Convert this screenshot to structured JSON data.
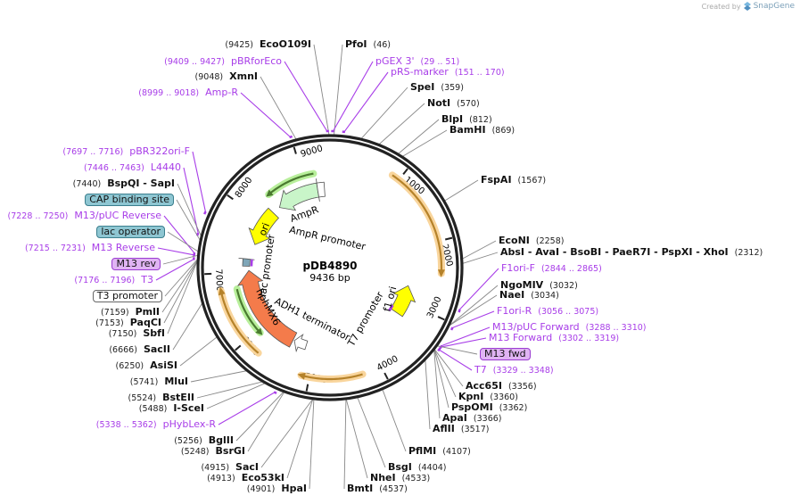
{
  "watermark": {
    "prefix": "Created by",
    "brand": "SnapGene"
  },
  "plasmid": {
    "name": "pDB4890",
    "length": "9436 bp",
    "length_bp": 9436
  },
  "ticks": [
    "1000",
    "2000",
    "3000",
    "4000",
    "5000",
    "6000",
    "7000",
    "8000",
    "9000"
  ],
  "features": {
    "ampr": "AmpR",
    "ampr_promoter": "AmpR promoter",
    "ori": "ori",
    "lac_promoter": "lac promoter",
    "hphmx6": "hphMX6",
    "adh1_terminator": "ADH1 terminator",
    "t7_promoter": "T7 promoter",
    "f1_ori": "f1 ori"
  },
  "colors": {
    "primer": "#a83de8",
    "enzyme_line": "#888888",
    "ampr": "#c9f5c9",
    "ori": "#ffff00",
    "hphmx6": "#f47b4b",
    "orf": "#f9d59c",
    "orf_line": "#b5822a",
    "green_orf": "#b8ef9b"
  },
  "labels": [
    {
      "type": "enzyme",
      "name": "EcoO109I",
      "pos": "(9425)"
    },
    {
      "type": "primer",
      "name": "pBRforEco",
      "pos": "(9409 .. 9427)"
    },
    {
      "type": "enzyme",
      "name": "XmnI",
      "pos": "(9048)"
    },
    {
      "type": "primer",
      "name": "Amp-R",
      "pos": "(8999 .. 9018)"
    },
    {
      "type": "primer",
      "name": "pBR322ori-F",
      "pos": "(7697 .. 7716)"
    },
    {
      "type": "primer",
      "name": "L4440",
      "pos": "(7446 .. 7463)"
    },
    {
      "type": "enzyme",
      "name": "BspQI   - SapI",
      "pos": "(7440)"
    },
    {
      "type": "box",
      "style": "cap",
      "name": "CAP binding site"
    },
    {
      "type": "primer",
      "name": "M13/pUC Reverse",
      "pos": "(7228 .. 7250)"
    },
    {
      "type": "box",
      "style": "cap",
      "name": "lac operator"
    },
    {
      "type": "primer",
      "name": "M13 Reverse",
      "pos": "(7215 .. 7231)"
    },
    {
      "type": "box",
      "style": "m13",
      "name": "M13 rev"
    },
    {
      "type": "primer",
      "name": "T3",
      "pos": "(7176 .. 7196)"
    },
    {
      "type": "box",
      "style": "plain",
      "name": "T3 promoter"
    },
    {
      "type": "enzyme",
      "name": "PmlI",
      "pos": "(7159)"
    },
    {
      "type": "enzyme",
      "name": "PaqCI",
      "pos": "(7153)"
    },
    {
      "type": "enzyme",
      "name": "SbfI",
      "pos": "(7150)"
    },
    {
      "type": "enzyme",
      "name": "SacII",
      "pos": "(6666)"
    },
    {
      "type": "enzyme",
      "name": "AsiSI",
      "pos": "(6250)"
    },
    {
      "type": "enzyme",
      "name": "MluI",
      "pos": "(5741)"
    },
    {
      "type": "enzyme",
      "name": "BstEII",
      "pos": "(5524)"
    },
    {
      "type": "enzyme",
      "name": "I-SceI",
      "pos": "(5488)"
    },
    {
      "type": "primer",
      "name": "pHybLex-R",
      "pos": "(5338 .. 5362)"
    },
    {
      "type": "enzyme",
      "name": "BglII",
      "pos": "(5256)"
    },
    {
      "type": "enzyme",
      "name": "BsrGI",
      "pos": "(5248)"
    },
    {
      "type": "enzyme",
      "name": "SacI",
      "pos": "(4915)"
    },
    {
      "type": "enzyme",
      "name": "Eco53kI",
      "pos": "(4913)"
    },
    {
      "type": "enzyme",
      "name": "HpaI",
      "pos": "(4901)"
    },
    {
      "type": "enzyme",
      "name": "PfoI",
      "pos": "(46)"
    },
    {
      "type": "primer",
      "name": "pGEX 3'",
      "pos": "(29 .. 51)"
    },
    {
      "type": "primer",
      "name": "pRS-marker",
      "pos": "(151 .. 170)"
    },
    {
      "type": "enzyme",
      "name": "SpeI",
      "pos": "(359)"
    },
    {
      "type": "enzyme",
      "name": "NotI",
      "pos": "(570)"
    },
    {
      "type": "enzyme",
      "name": "BlpI",
      "pos": "(812)"
    },
    {
      "type": "enzyme",
      "name": "BamHI",
      "pos": "(869)"
    },
    {
      "type": "enzyme",
      "name": "FspAI",
      "pos": "(1567)"
    },
    {
      "type": "enzyme",
      "name": "EcoNI",
      "pos": "(2258)"
    },
    {
      "type": "enzyme",
      "name": "AbsI  - AvaI  - BsoBI  - PaeR7I  - PspXI  - XhoI",
      "pos": "(2312)"
    },
    {
      "type": "primer",
      "name": "F1ori-F",
      "pos": "(2844 .. 2865)"
    },
    {
      "type": "enzyme",
      "name": "NgoMIV",
      "pos": "(3032)"
    },
    {
      "type": "enzyme",
      "name": "NaeI",
      "pos": "(3034)"
    },
    {
      "type": "primer",
      "name": "F1ori-R",
      "pos": "(3056 .. 3075)"
    },
    {
      "type": "primer",
      "name": "M13/pUC Forward",
      "pos": "(3288 .. 3310)"
    },
    {
      "type": "primer",
      "name": "M13 Forward",
      "pos": "(3302 .. 3319)"
    },
    {
      "type": "box",
      "style": "m13",
      "name": "M13 fwd"
    },
    {
      "type": "primer",
      "name": "T7",
      "pos": "(3329 .. 3348)"
    },
    {
      "type": "enzyme",
      "name": "Acc65I",
      "pos": "(3356)"
    },
    {
      "type": "enzyme",
      "name": "KpnI",
      "pos": "(3360)"
    },
    {
      "type": "enzyme",
      "name": "PspOMI",
      "pos": "(3362)"
    },
    {
      "type": "enzyme",
      "name": "ApaI",
      "pos": "(3366)"
    },
    {
      "type": "enzyme",
      "name": "AflII",
      "pos": "(3517)"
    },
    {
      "type": "enzyme",
      "name": "PflMI",
      "pos": "(4107)"
    },
    {
      "type": "enzyme",
      "name": "BsgI",
      "pos": "(4404)"
    },
    {
      "type": "enzyme",
      "name": "NheI",
      "pos": "(4533)"
    },
    {
      "type": "enzyme",
      "name": "BmtI",
      "pos": "(4537)"
    }
  ]
}
